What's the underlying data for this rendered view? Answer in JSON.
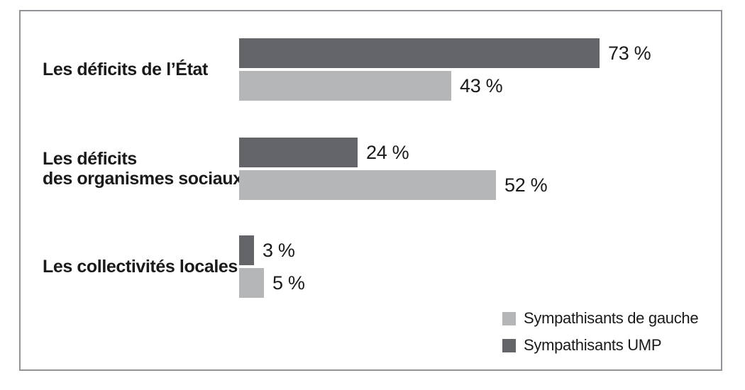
{
  "chart_data": {
    "type": "bar",
    "orientation": "horizontal",
    "unit": "%",
    "grid": false,
    "xlim": [
      0,
      100
    ],
    "legend_position": "bottom-right",
    "categories": [
      "Les déficits de l’État",
      "Les déficits des organismes sociaux",
      "Les collectivités locales"
    ],
    "category_lines": [
      [
        "Les déficits de l’État"
      ],
      [
        "Les déficits",
        "des organismes sociaux"
      ],
      [
        "Les collectivités locales"
      ]
    ],
    "series": [
      {
        "name": "Sympathisants UMP",
        "color": "#636569",
        "values": [
          73,
          24,
          3
        ],
        "value_labels": [
          "73 %",
          "24 %",
          "3 %"
        ]
      },
      {
        "name": "Sympathisants de gauche",
        "color": "#b4b6b8",
        "values": [
          43,
          52,
          5
        ],
        "value_labels": [
          "43 %",
          "52 %",
          "5 %"
        ]
      }
    ],
    "legend": [
      {
        "label": "Sympathisants de gauche",
        "color": "#b4b6b8"
      },
      {
        "label": "Sympathisants UMP",
        "color": "#636569"
      }
    ],
    "colors": {
      "frame_border": "#919396",
      "text": "#1a1a1a",
      "background": "#ffffff"
    }
  }
}
